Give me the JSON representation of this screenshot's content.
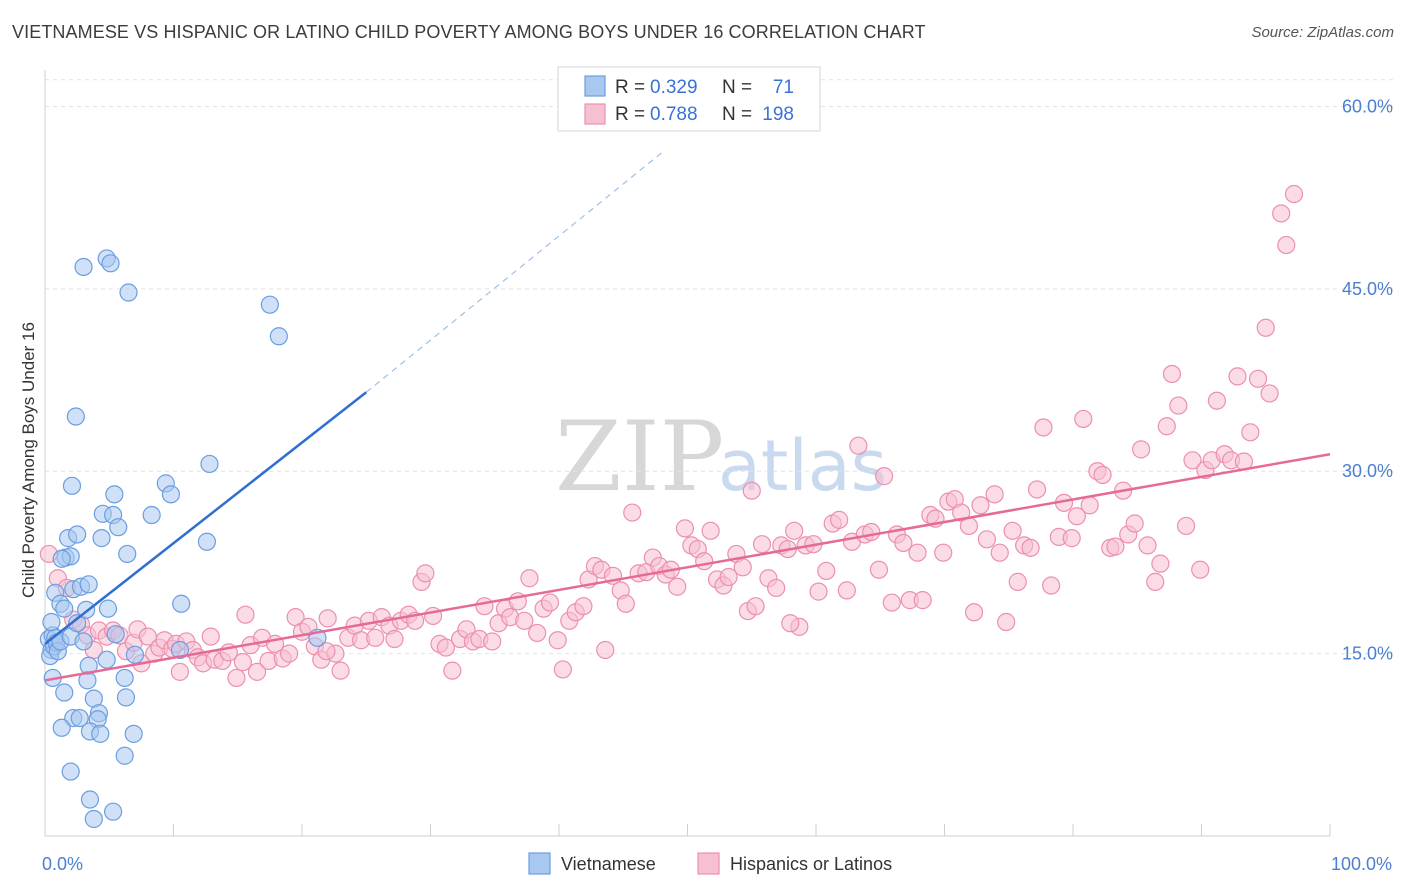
{
  "title": "VIETNAMESE VS HISPANIC OR LATINO CHILD POVERTY AMONG BOYS UNDER 16 CORRELATION CHART",
  "source": "Source: ZipAtlas.com",
  "watermark": {
    "zip": "ZIP",
    "atlas": "atlas"
  },
  "chart_data": {
    "type": "scatter",
    "xlabel": "",
    "ylabel": "Child Poverty Among Boys Under 16",
    "xlim": [
      0,
      100
    ],
    "ylim": [
      0,
      63
    ],
    "x_tick_labels": [
      {
        "value": 0,
        "label": "0.0%"
      },
      {
        "value": 100,
        "label": "100.0%"
      }
    ],
    "y_ticks": [
      {
        "value": 15,
        "label": "15.0%"
      },
      {
        "value": 30,
        "label": "30.0%"
      },
      {
        "value": 45,
        "label": "45.0%"
      },
      {
        "value": 60,
        "label": "60.0%"
      }
    ],
    "grid": true,
    "legend": {
      "placement": "top-center",
      "entries": [
        {
          "r_label": "R =",
          "r_value": "0.329",
          "n_label": "N =",
          "n_value": "71"
        },
        {
          "r_label": "R =",
          "r_value": "0.788",
          "n_label": "N =",
          "n_value": "198"
        }
      ]
    },
    "bottom_legend": [
      "Vietnamese",
      "Hispanics or Latinos"
    ],
    "colors": {
      "vietnamese_fill": "#a9c8f0",
      "vietnamese_stroke": "#6a9ee0",
      "vietnamese_line": "#2f6fd0",
      "hispanic_fill": "#f7bfd2",
      "hispanic_stroke": "#ec8fb0",
      "hispanic_line": "#e66a98",
      "tick_label": "#4a7fd0"
    },
    "series": [
      {
        "name": "Vietnamese",
        "trend": {
          "x1": 0,
          "y1": 15.8,
          "x2": 25,
          "y2": 36.5,
          "dash_to_x": 48,
          "dash_to_y": 56.2
        },
        "points": [
          [
            0.3,
            16.2
          ],
          [
            0.5,
            15.3
          ],
          [
            0.4,
            14.8
          ],
          [
            0.6,
            16.5
          ],
          [
            0.7,
            15.6
          ],
          [
            0.8,
            16.3
          ],
          [
            0.9,
            15.9
          ],
          [
            1.0,
            15.2
          ],
          [
            1.2,
            16.0
          ],
          [
            0.5,
            17.6
          ],
          [
            0.8,
            20.0
          ],
          [
            1.2,
            19.1
          ],
          [
            1.5,
            18.7
          ],
          [
            1.6,
            22.9
          ],
          [
            2.0,
            23.0
          ],
          [
            1.8,
            24.5
          ],
          [
            2.5,
            24.8
          ],
          [
            2.2,
            20.3
          ],
          [
            2.8,
            20.5
          ],
          [
            3.4,
            20.7
          ],
          [
            1.3,
            22.8
          ],
          [
            2.0,
            16.4
          ],
          [
            2.5,
            17.5
          ],
          [
            3.2,
            18.6
          ],
          [
            3.0,
            16.0
          ],
          [
            3.4,
            14.0
          ],
          [
            3.3,
            12.8
          ],
          [
            1.5,
            11.8
          ],
          [
            3.8,
            11.3
          ],
          [
            4.8,
            14.5
          ],
          [
            5.5,
            16.6
          ],
          [
            6.2,
            13.0
          ],
          [
            6.3,
            11.4
          ],
          [
            4.2,
            10.1
          ],
          [
            2.2,
            9.7
          ],
          [
            2.7,
            9.7
          ],
          [
            4.1,
            9.6
          ],
          [
            3.5,
            8.6
          ],
          [
            4.3,
            8.4
          ],
          [
            1.3,
            8.9
          ],
          [
            6.9,
            8.4
          ],
          [
            6.2,
            6.6
          ],
          [
            2.0,
            5.3
          ],
          [
            3.5,
            3.0
          ],
          [
            5.3,
            2.0
          ],
          [
            3.8,
            1.4
          ],
          [
            2.1,
            28.8
          ],
          [
            2.4,
            34.5
          ],
          [
            4.5,
            26.5
          ],
          [
            5.3,
            26.4
          ],
          [
            5.4,
            28.1
          ],
          [
            5.7,
            25.4
          ],
          [
            6.4,
            23.2
          ],
          [
            4.4,
            24.5
          ],
          [
            8.3,
            26.4
          ],
          [
            9.4,
            29.0
          ],
          [
            9.8,
            28.1
          ],
          [
            10.6,
            19.1
          ],
          [
            12.6,
            24.2
          ],
          [
            12.8,
            30.6
          ],
          [
            3.0,
            46.8
          ],
          [
            4.8,
            47.5
          ],
          [
            5.1,
            47.1
          ],
          [
            6.5,
            44.7
          ],
          [
            17.5,
            43.7
          ],
          [
            18.2,
            41.1
          ],
          [
            21.2,
            16.3
          ],
          [
            7.0,
            14.9
          ],
          [
            0.6,
            13.0
          ],
          [
            10.5,
            15.3
          ],
          [
            4.9,
            18.7
          ]
        ]
      },
      {
        "name": "Hispanics or Latinos",
        "trend": {
          "x1": 0,
          "y1": 12.8,
          "x2": 100,
          "y2": 31.4
        },
        "points": [
          [
            0.3,
            23.2
          ],
          [
            1.0,
            21.2
          ],
          [
            1.7,
            20.4
          ],
          [
            2.2,
            17.8
          ],
          [
            2.8,
            17.4
          ],
          [
            3.3,
            16.5
          ],
          [
            3.8,
            15.3
          ],
          [
            4.2,
            16.9
          ],
          [
            4.8,
            16.4
          ],
          [
            5.3,
            16.9
          ],
          [
            5.8,
            16.5
          ],
          [
            6.3,
            15.2
          ],
          [
            6.9,
            15.9
          ],
          [
            7.2,
            17.0
          ],
          [
            7.5,
            14.2
          ],
          [
            8.0,
            16.4
          ],
          [
            8.5,
            15.0
          ],
          [
            8.9,
            15.5
          ],
          [
            9.3,
            16.1
          ],
          [
            9.9,
            15.4
          ],
          [
            10.2,
            15.8
          ],
          [
            10.5,
            13.5
          ],
          [
            11.0,
            16.0
          ],
          [
            11.5,
            15.3
          ],
          [
            11.9,
            14.7
          ],
          [
            12.3,
            14.2
          ],
          [
            12.9,
            16.4
          ],
          [
            13.2,
            14.5
          ],
          [
            13.8,
            14.4
          ],
          [
            14.3,
            15.1
          ],
          [
            14.9,
            13.0
          ],
          [
            15.4,
            14.3
          ],
          [
            15.6,
            18.2
          ],
          [
            16.0,
            15.7
          ],
          [
            16.5,
            13.5
          ],
          [
            16.9,
            16.3
          ],
          [
            17.4,
            14.4
          ],
          [
            17.9,
            15.8
          ],
          [
            18.5,
            14.6
          ],
          [
            19.0,
            15.0
          ],
          [
            19.5,
            18.0
          ],
          [
            20.0,
            16.8
          ],
          [
            20.5,
            17.2
          ],
          [
            21.0,
            15.6
          ],
          [
            21.5,
            14.5
          ],
          [
            22.0,
            17.9
          ],
          [
            22.6,
            15.0
          ],
          [
            23.0,
            13.6
          ],
          [
            23.6,
            16.3
          ],
          [
            24.1,
            17.3
          ],
          [
            24.6,
            16.1
          ],
          [
            25.2,
            17.7
          ],
          [
            25.7,
            16.3
          ],
          [
            26.2,
            18.0
          ],
          [
            26.8,
            17.3
          ],
          [
            27.2,
            16.2
          ],
          [
            27.7,
            17.7
          ],
          [
            28.3,
            18.2
          ],
          [
            28.8,
            17.7
          ],
          [
            29.3,
            20.9
          ],
          [
            29.6,
            21.6
          ],
          [
            30.2,
            18.1
          ],
          [
            30.7,
            15.8
          ],
          [
            31.2,
            15.5
          ],
          [
            31.7,
            13.6
          ],
          [
            32.3,
            16.2
          ],
          [
            32.8,
            17.0
          ],
          [
            33.3,
            16.0
          ],
          [
            33.8,
            16.2
          ],
          [
            34.2,
            18.9
          ],
          [
            34.8,
            16.0
          ],
          [
            35.3,
            17.5
          ],
          [
            35.8,
            18.7
          ],
          [
            36.2,
            18.0
          ],
          [
            36.8,
            19.3
          ],
          [
            37.3,
            17.7
          ],
          [
            37.7,
            21.2
          ],
          [
            38.3,
            16.7
          ],
          [
            38.8,
            18.7
          ],
          [
            39.3,
            19.2
          ],
          [
            39.9,
            16.1
          ],
          [
            40.3,
            13.7
          ],
          [
            40.8,
            17.7
          ],
          [
            41.3,
            18.4
          ],
          [
            41.9,
            18.9
          ],
          [
            42.3,
            21.1
          ],
          [
            42.8,
            22.2
          ],
          [
            43.3,
            21.9
          ],
          [
            43.6,
            15.3
          ],
          [
            44.2,
            21.4
          ],
          [
            44.8,
            20.2
          ],
          [
            45.2,
            19.1
          ],
          [
            45.7,
            26.6
          ],
          [
            46.2,
            21.6
          ],
          [
            46.8,
            21.7
          ],
          [
            47.3,
            22.9
          ],
          [
            47.8,
            22.2
          ],
          [
            48.3,
            21.5
          ],
          [
            48.7,
            21.9
          ],
          [
            49.2,
            20.5
          ],
          [
            49.8,
            25.3
          ],
          [
            50.3,
            23.9
          ],
          [
            50.8,
            23.6
          ],
          [
            51.3,
            22.6
          ],
          [
            51.8,
            25.1
          ],
          [
            52.3,
            21.1
          ],
          [
            52.8,
            20.6
          ],
          [
            53.2,
            21.3
          ],
          [
            53.8,
            23.2
          ],
          [
            54.3,
            22.1
          ],
          [
            54.7,
            18.5
          ],
          [
            55.3,
            18.9
          ],
          [
            55.8,
            24.0
          ],
          [
            56.3,
            21.2
          ],
          [
            56.9,
            20.4
          ],
          [
            57.3,
            23.9
          ],
          [
            57.8,
            23.6
          ],
          [
            58.3,
            25.1
          ],
          [
            58.7,
            17.2
          ],
          [
            59.2,
            23.9
          ],
          [
            59.8,
            24.0
          ],
          [
            60.2,
            20.1
          ],
          [
            60.8,
            21.8
          ],
          [
            61.3,
            25.7
          ],
          [
            61.8,
            26.0
          ],
          [
            62.4,
            20.2
          ],
          [
            62.8,
            24.2
          ],
          [
            63.3,
            32.1
          ],
          [
            63.8,
            24.8
          ],
          [
            64.3,
            25.0
          ],
          [
            64.9,
            21.9
          ],
          [
            65.3,
            29.6
          ],
          [
            65.9,
            19.2
          ],
          [
            66.3,
            24.8
          ],
          [
            66.8,
            24.1
          ],
          [
            67.3,
            19.4
          ],
          [
            67.9,
            23.3
          ],
          [
            68.3,
            19.4
          ],
          [
            68.9,
            26.4
          ],
          [
            69.3,
            26.1
          ],
          [
            69.9,
            23.3
          ],
          [
            70.3,
            27.5
          ],
          [
            70.8,
            27.7
          ],
          [
            71.3,
            26.6
          ],
          [
            71.9,
            25.5
          ],
          [
            72.3,
            18.4
          ],
          [
            72.8,
            27.2
          ],
          [
            73.3,
            24.4
          ],
          [
            73.9,
            28.1
          ],
          [
            74.3,
            23.3
          ],
          [
            74.8,
            17.6
          ],
          [
            75.3,
            25.1
          ],
          [
            75.7,
            20.9
          ],
          [
            76.2,
            23.9
          ],
          [
            76.7,
            23.7
          ],
          [
            77.2,
            28.5
          ],
          [
            77.7,
            33.6
          ],
          [
            78.3,
            20.6
          ],
          [
            78.9,
            24.6
          ],
          [
            79.3,
            27.4
          ],
          [
            79.9,
            24.5
          ],
          [
            80.3,
            26.3
          ],
          [
            80.8,
            34.3
          ],
          [
            81.3,
            27.2
          ],
          [
            81.9,
            30.0
          ],
          [
            82.3,
            29.7
          ],
          [
            82.9,
            23.7
          ],
          [
            83.3,
            23.8
          ],
          [
            83.9,
            28.4
          ],
          [
            84.3,
            24.8
          ],
          [
            84.8,
            25.7
          ],
          [
            85.3,
            31.8
          ],
          [
            85.8,
            23.9
          ],
          [
            86.4,
            20.9
          ],
          [
            86.8,
            22.4
          ],
          [
            87.3,
            33.7
          ],
          [
            87.7,
            38.0
          ],
          [
            88.2,
            35.4
          ],
          [
            88.8,
            25.5
          ],
          [
            89.3,
            30.9
          ],
          [
            89.9,
            21.9
          ],
          [
            90.3,
            30.1
          ],
          [
            90.8,
            30.9
          ],
          [
            91.2,
            35.8
          ],
          [
            91.8,
            31.4
          ],
          [
            92.3,
            30.9
          ],
          [
            92.8,
            37.8
          ],
          [
            93.3,
            30.8
          ],
          [
            93.8,
            33.2
          ],
          [
            94.4,
            37.6
          ],
          [
            95.0,
            41.8
          ],
          [
            95.3,
            36.4
          ],
          [
            96.2,
            51.2
          ],
          [
            96.6,
            48.6
          ],
          [
            97.2,
            52.8
          ],
          [
            55.0,
            28.4
          ],
          [
            58.0,
            17.5
          ],
          [
            21.9,
            15.2
          ]
        ]
      }
    ]
  }
}
